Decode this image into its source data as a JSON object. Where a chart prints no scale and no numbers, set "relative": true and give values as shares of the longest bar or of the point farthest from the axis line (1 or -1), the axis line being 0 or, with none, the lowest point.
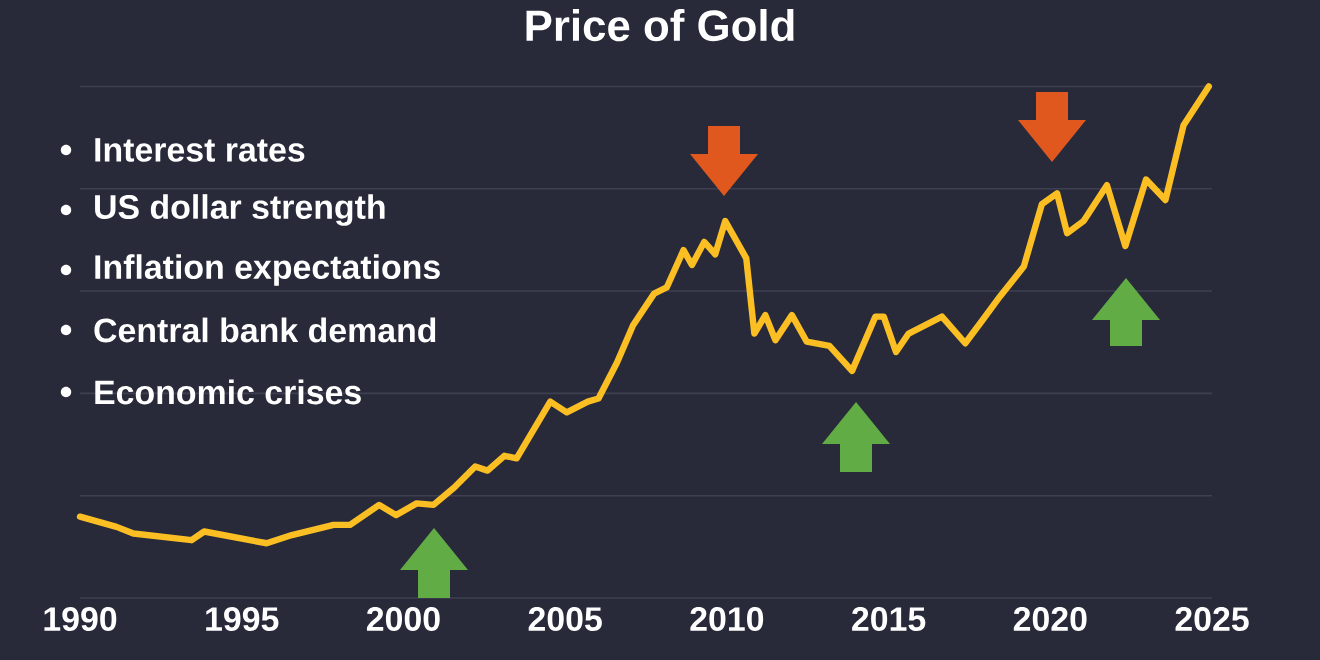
{
  "chart_data": {
    "type": "line",
    "title": "Price of Gold",
    "relative": true,
    "grid": "y",
    "tick_labels": "x",
    "marker": "none",
    "line_style": "solid",
    "annotations": [
      "Interest rates",
      "US dollar strength",
      "Inflation expectations",
      "Central bank demand",
      "Economic crises"
    ],
    "xlim": [
      1990,
      2025
    ],
    "xticks": [
      1990,
      1995,
      2000,
      2005,
      2010,
      2015,
      2020,
      2025
    ],
    "x": [
      1990.0,
      1991.13,
      1991.65,
      1993.45,
      1993.84,
      1995.77,
      1996.55,
      1997.84,
      1998.35,
      1999.25,
      1999.77,
      2000.41,
      2000.93,
      2001.57,
      2002.22,
      2002.6,
      2003.12,
      2003.5,
      2004.54,
      2005.05,
      2005.7,
      2006.03,
      2006.6,
      2007.1,
      2007.75,
      2008.14,
      2008.66,
      2008.92,
      2009.3,
      2009.64,
      2009.95,
      2010.6,
      2010.85,
      2011.19,
      2011.5,
      2012.01,
      2012.47,
      2013.17,
      2013.87,
      2014.59,
      2014.85,
      2015.23,
      2015.62,
      2016.65,
      2017.37,
      2017.89,
      2018.45,
      2019.18,
      2019.74,
      2020.21,
      2020.52,
      2021.03,
      2021.75,
      2022.32,
      2022.96,
      2023.56,
      2024.12,
      2024.9
    ],
    "values": [
      0.159,
      0.139,
      0.126,
      0.113,
      0.13,
      0.107,
      0.123,
      0.143,
      0.143,
      0.182,
      0.162,
      0.185,
      0.182,
      0.216,
      0.257,
      0.249,
      0.278,
      0.273,
      0.384,
      0.363,
      0.384,
      0.39,
      0.46,
      0.533,
      0.595,
      0.607,
      0.68,
      0.651,
      0.696,
      0.672,
      0.737,
      0.664,
      0.517,
      0.553,
      0.504,
      0.553,
      0.501,
      0.493,
      0.444,
      0.55,
      0.55,
      0.481,
      0.517,
      0.55,
      0.498,
      0.542,
      0.59,
      0.648,
      0.77,
      0.791,
      0.713,
      0.737,
      0.807,
      0.688,
      0.818,
      0.778,
      0.924,
      1.0
    ],
    "color": "#fbbf24"
  }
}
